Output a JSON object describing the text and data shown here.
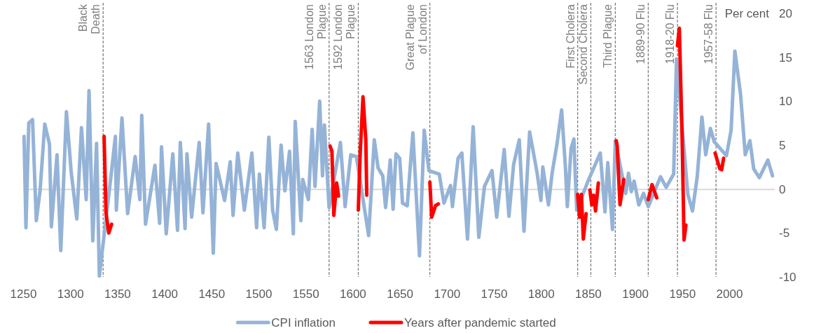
{
  "chart_data": {
    "type": "line",
    "ylabel": "Per cent",
    "xlim": [
      1250,
      2048
    ],
    "xticks": [
      1250,
      1300,
      1350,
      1400,
      1450,
      1500,
      1550,
      1600,
      1650,
      1700,
      1750,
      1800,
      1850,
      1900,
      1950,
      2000
    ],
    "ylim": [
      -10,
      20
    ],
    "yticks": [
      -10,
      -5,
      0,
      5,
      10,
      15,
      20
    ],
    "legend": "bottom",
    "series": [
      {
        "name": "CPI inflation",
        "color": "#95b3d7",
        "x": [
          1251,
          1253,
          1256,
          1260,
          1264,
          1268,
          1273,
          1278,
          1280,
          1286,
          1290,
          1296,
          1301,
          1307,
          1312,
          1317,
          1320,
          1324,
          1328,
          1331,
          1344,
          1348,
          1349,
          1355,
          1361,
          1369,
          1374,
          1376,
          1380,
          1390,
          1395,
          1397,
          1402,
          1409,
          1414,
          1417,
          1422,
          1424,
          1429,
          1437,
          1441,
          1447,
          1452,
          1455,
          1464,
          1470,
          1473,
          1478,
          1485,
          1493,
          1498,
          1501,
          1506,
          1511,
          1515,
          1519,
          1524,
          1528,
          1533,
          1537,
          1539,
          1545,
          1547,
          1553,
          1557,
          1560,
          1565,
          1568,
          1570,
          1575,
          1587,
          1592,
          1598,
          1604,
          1617,
          1623,
          1627,
          1632,
          1635,
          1640,
          1643,
          1646,
          1650,
          1653,
          1658,
          1664,
          1667,
          1671,
          1676,
          1681,
          1692,
          1697,
          1704,
          1706,
          1712,
          1716,
          1722,
          1725,
          1728,
          1734,
          1740,
          1748,
          1753,
          1761,
          1766,
          1771,
          1777,
          1782,
          1788,
          1796,
          1800,
          1802,
          1808,
          1812,
          1817,
          1822,
          1826,
          1828,
          1832,
          1835,
          1838,
          1850,
          1863,
          1868,
          1871,
          1876,
          1879,
          1890,
          1893,
          1896,
          1899,
          1904,
          1909,
          1914,
          1927,
          1933,
          1941,
          1944,
          1956,
          1961,
          1966,
          1971,
          1975,
          1980,
          1984,
          1997,
          2002,
          2006,
          2012,
          2017,
          2022,
          2026,
          2032,
          2041,
          2046
        ],
        "values": [
          6.0,
          -4.4,
          7.5,
          7.9,
          -3.6,
          -0.2,
          7.4,
          5.1,
          -4.3,
          3.9,
          -7.0,
          8.8,
          2.0,
          -3.4,
          7.0,
          -1.2,
          11.2,
          -5.9,
          5.2,
          -9.9,
          2.1,
          6.0,
          -2.4,
          8.1,
          -2.8,
          3.7,
          -1.2,
          8.4,
          -4.0,
          2.7,
          -3.9,
          4.8,
          -5.1,
          4.0,
          -4.7,
          5.3,
          -4.5,
          4.0,
          -3.2,
          5.3,
          -2.7,
          7.4,
          -7.3,
          2.9,
          -1.3,
          3.1,
          -3.0,
          4.1,
          -2.4,
          4.1,
          -4.4,
          1.7,
          -4.4,
          5.9,
          -2.4,
          -4.6,
          5.0,
          -0.2,
          4.3,
          -5.1,
          7.7,
          -3.6,
          1.1,
          -1.2,
          6.8,
          0.3,
          10.0,
          1.5,
          7.3,
          -2.1,
          5.3,
          -2.0,
          3.9,
          3.7,
          -5.3,
          5.6,
          2.4,
          1.5,
          -2.1,
          3.3,
          -2.3,
          4.0,
          3.5,
          -1.6,
          -1.9,
          6.4,
          0.4,
          -7.6,
          6.7,
          2.1,
          1.7,
          -1.6,
          0.4,
          -2.0,
          3.5,
          4.1,
          -5.7,
          0.5,
          7.1,
          -5.5,
          0.3,
          2.1,
          -3.2,
          4.5,
          -3.1,
          2.8,
          5.6,
          -4.8,
          6.5,
          1.8,
          -1.3,
          2.5,
          -1.8,
          1.9,
          5.1,
          9.0,
          2.5,
          -2.0,
          4.6,
          5.7,
          -2.4,
          0.9,
          4.1,
          -2.6,
          3.0,
          -4.6,
          5.5,
          -0.5,
          1.8,
          -0.3,
          0.9,
          -1.8,
          -0.5,
          -2.0,
          1.4,
          0.2,
          1.7,
          14.8,
          -0.6,
          -2.5,
          1.4,
          8.2,
          3.9,
          6.9,
          5.4,
          3.8,
          6.7,
          15.7,
          10.8,
          3.9,
          5.5,
          2.3,
          1.3,
          3.3,
          1.5
        ]
      },
      {
        "name": "Years after pandemic started",
        "color": "#ff0000",
        "x": [
          1336,
          1338,
          1341,
          1344,
          1345,
          1576,
          1578,
          1580,
          1583,
          1585,
          1586,
          1606,
          1608,
          1611,
          1614,
          1615,
          1616,
          1682,
          1684,
          1688,
          1691,
          1692,
          1839,
          1841,
          1843,
          1845,
          1848,
          1849,
          1852,
          1854,
          1856,
          1858,
          1861,
          1862,
          1880,
          1881,
          1884,
          1888,
          1889,
          1914,
          1918,
          1923,
          1924,
          1945,
          1947,
          1950,
          1952,
          1954,
          1955,
          1985,
          1990,
          1992,
          1994
        ],
        "values": [
          6.0,
          -2.7,
          -5.0,
          -4.0,
          null,
          4.9,
          4.3,
          -3.0,
          0.7,
          -0.8,
          null,
          -2.4,
          4.0,
          10.5,
          5.6,
          -0.7,
          null,
          0.8,
          -3.2,
          -1.9,
          -1.7,
          null,
          -0.6,
          -3.2,
          -0.6,
          -5.7,
          -2.8,
          null,
          -0.1,
          -1.8,
          -0.7,
          -2.5,
          0.7,
          null,
          5.5,
          4.9,
          -1.8,
          1.1,
          null,
          -1.2,
          0.5,
          -1.0,
          null,
          16.3,
          18.3,
          5.7,
          -5.8,
          -4.1,
          null,
          4.1,
          2.3,
          2.2,
          3.5
        ]
      }
    ],
    "ref_lines": [
      {
        "axis": "x",
        "value": 1335,
        "label": "Black\nDeath",
        "color": "#7f7f7f",
        "line_style": "dashed"
      },
      {
        "axis": "x",
        "value": 1575,
        "label": "1563 London\nPlague",
        "color": "#7f7f7f",
        "line_style": "dashed"
      },
      {
        "axis": "x",
        "value": 1606,
        "label": "1592 London\nPlague",
        "color": "#7f7f7f",
        "line_style": "dashed"
      },
      {
        "axis": "x",
        "value": 1682,
        "label": "Great Plague\nof London",
        "color": "#7f7f7f",
        "line_style": "dashed"
      },
      {
        "axis": "x",
        "value": 1839,
        "label": "First Cholera",
        "color": "#7f7f7f",
        "line_style": "dashed"
      },
      {
        "axis": "x",
        "value": 1853,
        "label": "Second Cholera",
        "color": "#7f7f7f",
        "line_style": "dashed"
      },
      {
        "axis": "x",
        "value": 1879,
        "label": "Third Plague",
        "color": "#7f7f7f",
        "line_style": "dashed"
      },
      {
        "axis": "x",
        "value": 1914,
        "label": "1889-90 Flu",
        "color": "#7f7f7f",
        "line_style": "dashed"
      },
      {
        "axis": "x",
        "value": 1945,
        "label": "1918-20 Flu",
        "color": "#7f7f7f",
        "line_style": "dashed"
      },
      {
        "axis": "x",
        "value": 1986,
        "label": "1957-58 Flu",
        "color": "#7f7f7f",
        "line_style": "dashed"
      }
    ]
  }
}
